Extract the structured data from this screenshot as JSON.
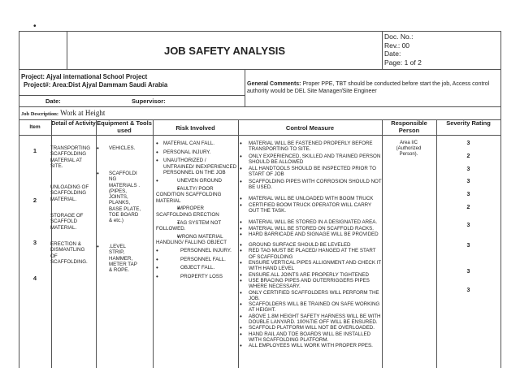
{
  "header": {
    "title": "JOB SAFETY ANALYSIS",
    "doc_no": "Doc. No.:",
    "rev": "Rev.: 00",
    "date": "Date:",
    "page": "Page: 1 of 2"
  },
  "project": {
    "name": "Project: Ajyal international School Project",
    "number": "Project#:  Area:Dist Ajyal Dammam Saudi Arabia",
    "date_label": "Date:",
    "supervisor_label": "Supervisor:"
  },
  "comments": {
    "label": "General Comments:",
    "text": " Proper PPE, TBT should be conducted before start the job, Access control authority would be DEL Site Manager/Site Engineer"
  },
  "job_description": {
    "label": "Job Description:",
    "value": " Work at Height"
  },
  "columns": [
    "Item",
    "Detail of Activity",
    "Equipment & Tools used",
    "Risk Involved",
    "Control Measure",
    "Responsible Person",
    "Severity Rating"
  ],
  "items": [
    "1",
    "2",
    "3",
    "4"
  ],
  "activities": [
    "TRANSPORTING SCAFFOLDING MATERIAL AT SITE.",
    "UNLOADING OF SCAFFOLDING MATERIAL.",
    "STORAGE OF SCAFFOLD MATERIAL.",
    "ERECTION & DISMANTLING OF SCAFFOLDING."
  ],
  "equipment": [
    "VEHICLES.",
    "SCAFFOLDI NG MATERIALS . (PIPES, JOINTS, PLANKS, BASE PLATE, TOE BOARD & etc.)",
    ".LEVEL STRIP, HAMMER, METER TAP & ROPE."
  ],
  "risks": [
    "MATERIAL CAN FALL.",
    "PERSONAL INJURY.",
    "UNAUTHORIZED / UNTRAINED/ INEXPERIENCED PERSONNEL ON THE JOB",
    "UNEVEN GROUND",
    "FAULTY/ POOR CONDITION SCAFFOLDING MATERIAL",
    "IMPROPER SCAFFOLDING ERECTION",
    "TAG SYSTEM NOT FOLLOWED.",
    "WRONG MATERIAL HANDLING/ FALLING OBJECT",
    "PERSONNEL INJURY.",
    "PERSONNEL FALL.",
    "OBJECT FALL.",
    "PROPERTY LOSS"
  ],
  "controls": [
    "MATERIAL WILL BE FASTENED PROPERLY BEFORE TRANSPORTING TO SITE.",
    "ONLY EXPERIENCED, SKILLED AND TRAINED PERSON SHOULD BE ALLOWED",
    "ALL HANDTOOLS SHOULD BE INSPECTED PRIOR TO START OF JOB",
    "SCAFFOLDING PIPES WITH CORROSION SHOULD NOT BE USED.",
    "MATERIAL WILL BE UNLOADED WITH BOOM TRUCK",
    "CERTIFIED BOOM TRUCK OPERATOR WILL CARRY OUT THE TASK.",
    "MATERIAL WILL BE STORED IN A DESIGNATED AREA.",
    "MATERIAL WILL BE STORED ON SCAFFOLD RACKS.",
    "HARD BARRICADE AND SIGNAGE WILL BE PROVIDED",
    "GROUND SURFACE SHOULD BE LEVELED",
    "RED TAG MUST BE PLACED/ HANGED AT THE START OF SCAFFOLDING",
    "ENSURE VERTICAL PIPES ALLIGNMENT AND CHECK IT WITH HAND LEVEL",
    "ENSURE ALL JOINTS ARE PROPERLY TIGHTENED",
    "USE BRACING PIPES AND OUTERRIGGERS PIPES WHERE NECESSARY.",
    "ONLY CERTIFIED SCAFFOLDERS WILL PERFORM THE JOB.",
    "SCAFFOLDERS WILL BE TRAINED ON SAFE WORKING AT HEIGHT.",
    "ABOVE 1.8M HEIGHT SAFETY HARNESS WILL BE WITH DOUBLE LANYARD. 100%TIE OFF WILL BE ENSURED.",
    "SCAFFOLD PLATFORM WILL NOT BE OVERLOADED.",
    "HAND RAIL AND TOE BOARDS WILL BE INSTALLED WITH SCAFFOLDING PLATFORM.",
    "ALL EMPLOYEES WILL WORK WITH PROPER PPES."
  ],
  "responsible": "Area I/C (Authorized Person).",
  "severity": [
    "3",
    "2",
    "3",
    "3",
    "3",
    "2",
    "3",
    "3",
    "3",
    "3"
  ]
}
